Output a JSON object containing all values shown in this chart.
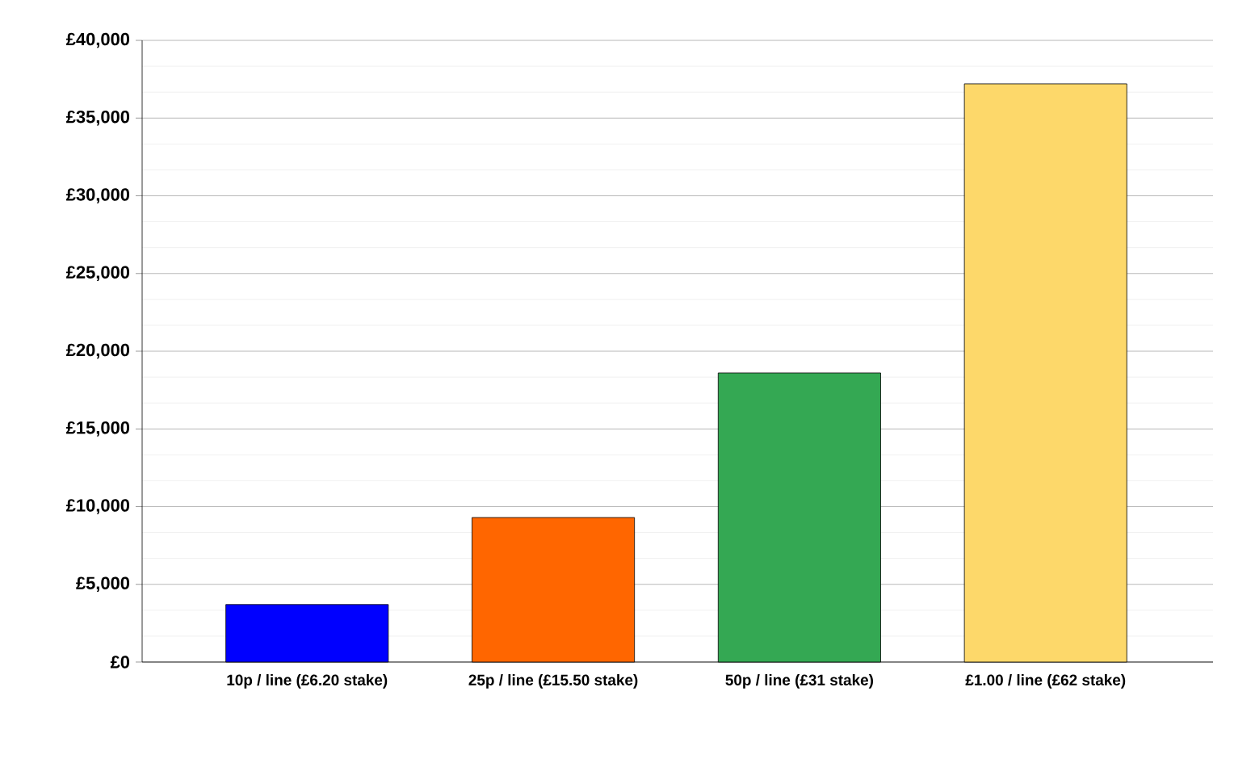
{
  "chart_data": {
    "type": "bar",
    "categories": [
      "10p / line (£6.20 stake)",
      "25p / line (£15.50 stake)",
      "50p / line (£31 stake)",
      "£1.00 / line (£62 stake)"
    ],
    "values": [
      3700,
      9300,
      18600,
      37200
    ],
    "colors": [
      "#0000ff",
      "#ff6600",
      "#34a853",
      "#fdd86a"
    ],
    "ylim": [
      0,
      40000
    ],
    "yticks": [
      {
        "value": 0,
        "label": "£0"
      },
      {
        "value": 5000,
        "label": "£5,000"
      },
      {
        "value": 10000,
        "label": "£10,000"
      },
      {
        "value": 15000,
        "label": "£15,000"
      },
      {
        "value": 20000,
        "label": "£20,000"
      },
      {
        "value": 25000,
        "label": "£25,000"
      },
      {
        "value": 30000,
        "label": "£30,000"
      },
      {
        "value": 35000,
        "label": "£35,000"
      },
      {
        "value": 40000,
        "label": "£40,000"
      }
    ],
    "grid": "y"
  }
}
